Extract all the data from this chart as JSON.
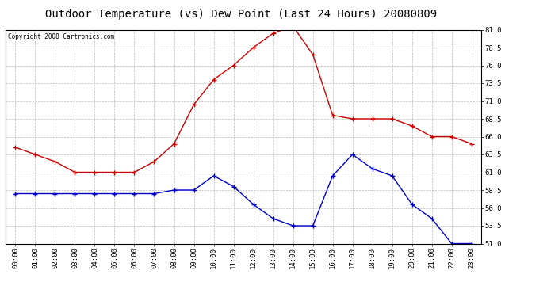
{
  "title": "Outdoor Temperature (vs) Dew Point (Last 24 Hours) 20080809",
  "copyright_text": "Copyright 2008 Cartronics.com",
  "hours": [
    "00:00",
    "01:00",
    "02:00",
    "03:00",
    "04:00",
    "05:00",
    "06:00",
    "07:00",
    "08:00",
    "09:00",
    "10:00",
    "11:00",
    "12:00",
    "13:00",
    "14:00",
    "15:00",
    "16:00",
    "17:00",
    "18:00",
    "19:00",
    "20:00",
    "21:00",
    "22:00",
    "23:00"
  ],
  "temp": [
    64.5,
    63.5,
    62.5,
    61.0,
    61.0,
    61.0,
    61.0,
    62.5,
    65.0,
    70.5,
    74.0,
    76.0,
    78.5,
    80.5,
    81.5,
    77.5,
    69.0,
    68.5,
    68.5,
    68.5,
    67.5,
    66.0,
    66.0,
    65.0
  ],
  "dewpoint": [
    58.0,
    58.0,
    58.0,
    58.0,
    58.0,
    58.0,
    58.0,
    58.0,
    58.5,
    58.5,
    60.5,
    59.0,
    56.5,
    54.5,
    53.5,
    53.5,
    60.5,
    63.5,
    61.5,
    60.5,
    56.5,
    54.5,
    51.0,
    51.0
  ],
  "temp_color": "#cc0000",
  "dewpoint_color": "#0000cc",
  "ylim_min": 51.0,
  "ylim_max": 81.0,
  "yticks": [
    51.0,
    53.5,
    56.0,
    58.5,
    61.0,
    63.5,
    66.0,
    68.5,
    71.0,
    73.5,
    76.0,
    78.5,
    81.0
  ],
  "bg_color": "#ffffff",
  "plot_bg_color": "#ffffff",
  "grid_color": "#bbbbbb",
  "title_fontsize": 10,
  "tick_fontsize": 6.5,
  "copyright_fontsize": 5.5,
  "marker_size": 4,
  "line_width": 1.0
}
